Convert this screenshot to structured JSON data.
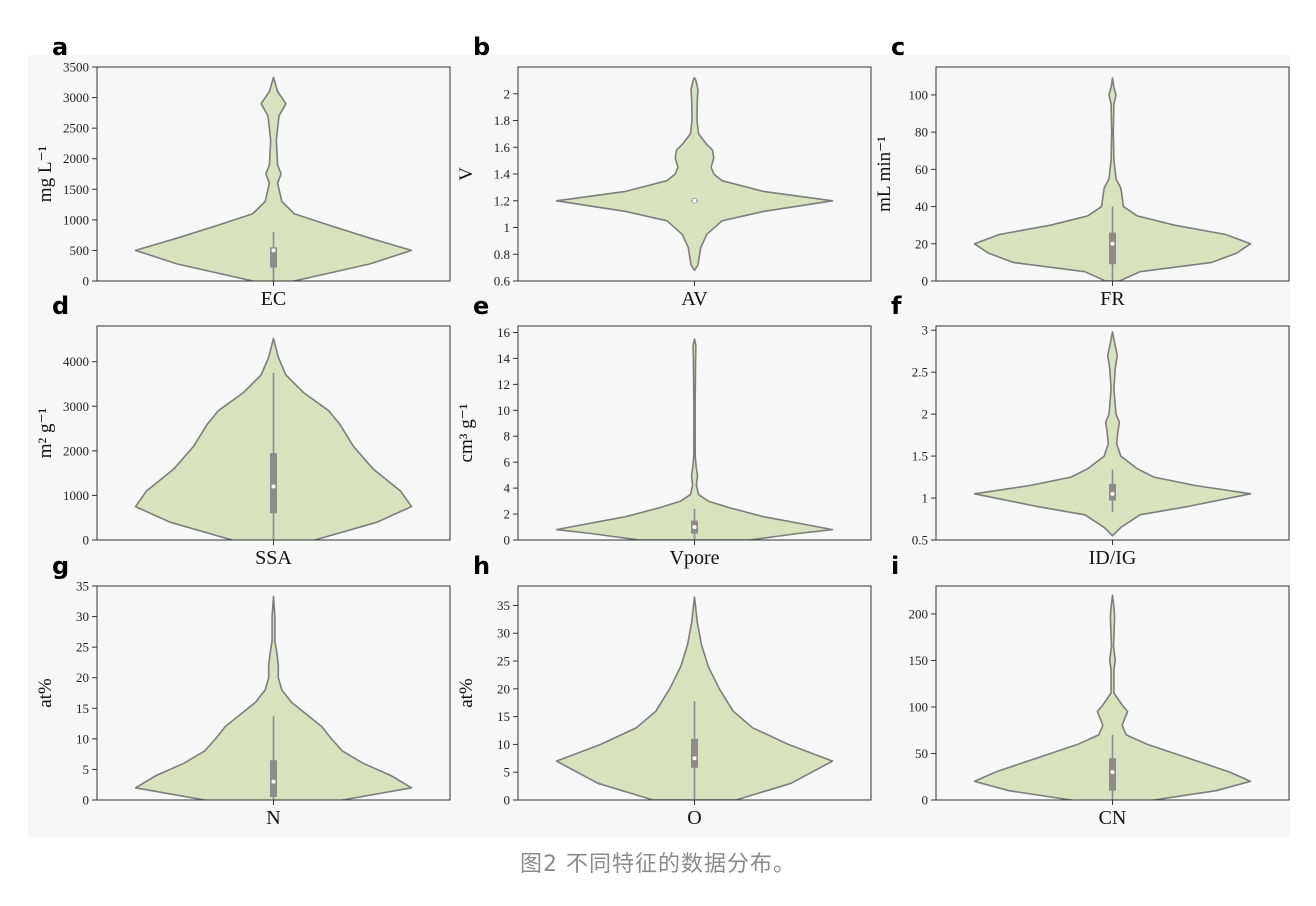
{
  "caption": "图2 不同特征的数据分布。",
  "colors": {
    "figure_background": "#f7f7f7",
    "violin_fill": "#d8e2bd",
    "violin_edge": "#7d7d7d",
    "box": "#8c8c8c",
    "median": "#ffffff"
  },
  "chart_data": [
    {
      "panel": "a",
      "type": "violin",
      "category": "EC",
      "ylabel": "mg L⁻¹",
      "ylim": [
        0,
        3500
      ],
      "yticks": [
        0,
        500,
        1000,
        1500,
        2000,
        2500,
        3000,
        3500
      ],
      "density": [
        [
          -300,
          0
        ],
        [
          0,
          0.15
        ],
        [
          280,
          0.7
        ],
        [
          500,
          1.0
        ],
        [
          700,
          0.7
        ],
        [
          900,
          0.42
        ],
        [
          1100,
          0.15
        ],
        [
          1300,
          0.06
        ],
        [
          1600,
          0.03
        ],
        [
          1750,
          0.055
        ],
        [
          1900,
          0.03
        ],
        [
          2300,
          0.02
        ],
        [
          2700,
          0.04
        ],
        [
          2900,
          0.09
        ],
        [
          3100,
          0.03
        ],
        [
          3330,
          0
        ]
      ],
      "box": {
        "q1": 220,
        "q3": 550,
        "whisker_low": 0,
        "whisker_high": 800,
        "median": 500
      }
    },
    {
      "panel": "b",
      "type": "violin",
      "category": "AV",
      "ylabel": "V",
      "ylim": [
        0.6,
        2.2
      ],
      "yticks": [
        0.6,
        0.8,
        1.0,
        1.2,
        1.4,
        1.6,
        1.8,
        2.0
      ],
      "density": [
        [
          0.68,
          0
        ],
        [
          0.72,
          0.025
        ],
        [
          0.85,
          0.045
        ],
        [
          0.95,
          0.09
        ],
        [
          1.05,
          0.2
        ],
        [
          1.12,
          0.5
        ],
        [
          1.2,
          1.0
        ],
        [
          1.27,
          0.5
        ],
        [
          1.35,
          0.2
        ],
        [
          1.4,
          0.14
        ],
        [
          1.45,
          0.12
        ],
        [
          1.52,
          0.14
        ],
        [
          1.58,
          0.13
        ],
        [
          1.62,
          0.09
        ],
        [
          1.7,
          0.03
        ],
        [
          1.8,
          0.018
        ],
        [
          1.95,
          0.02
        ],
        [
          2.03,
          0.025
        ],
        [
          2.1,
          0.01
        ],
        [
          2.12,
          0
        ]
      ],
      "box": {
        "q1": 1.195,
        "q3": 1.205,
        "whisker_low": 1.195,
        "whisker_high": 1.205,
        "median": 1.2
      }
    },
    {
      "panel": "c",
      "type": "violin",
      "category": "FR",
      "ylabel": "mL min⁻¹",
      "ylim": [
        0,
        115
      ],
      "yticks": [
        0,
        20,
        40,
        60,
        80,
        100
      ],
      "density": [
        [
          0,
          0.05
        ],
        [
          5,
          0.2
        ],
        [
          10,
          0.72
        ],
        [
          15,
          0.9
        ],
        [
          20,
          1.0
        ],
        [
          25,
          0.82
        ],
        [
          30,
          0.45
        ],
        [
          35,
          0.18
        ],
        [
          40,
          0.08
        ],
        [
          45,
          0.07
        ],
        [
          50,
          0.06
        ],
        [
          55,
          0.025
        ],
        [
          65,
          0.01
        ],
        [
          80,
          0.006
        ],
        [
          95,
          0.01
        ],
        [
          100,
          0.025
        ],
        [
          104,
          0.01
        ],
        [
          109,
          0
        ]
      ],
      "box": {
        "q1": 9,
        "q3": 26,
        "whisker_low": 0,
        "whisker_high": 40,
        "median": 20
      }
    },
    {
      "panel": "d",
      "type": "violin",
      "category": "SSA",
      "ylabel": "m² g⁻¹",
      "ylim": [
        0,
        4800
      ],
      "yticks": [
        0,
        1000,
        2000,
        3000,
        4000
      ],
      "density": [
        [
          -700,
          0
        ],
        [
          0,
          0.3
        ],
        [
          400,
          0.75
        ],
        [
          750,
          1.0
        ],
        [
          1100,
          0.92
        ],
        [
          1600,
          0.72
        ],
        [
          2100,
          0.58
        ],
        [
          2600,
          0.48
        ],
        [
          2900,
          0.4
        ],
        [
          3300,
          0.22
        ],
        [
          3700,
          0.09
        ],
        [
          4100,
          0.035
        ],
        [
          4520,
          0
        ]
      ],
      "box": {
        "q1": 600,
        "q3": 1950,
        "whisker_low": 0,
        "whisker_high": 3750,
        "median": 1200
      }
    },
    {
      "panel": "e",
      "type": "violin",
      "category": "Vpore",
      "ylabel": "cm³ g⁻¹",
      "ylim": [
        0,
        16.5
      ],
      "yticks": [
        0,
        2,
        4,
        6,
        8,
        10,
        12,
        14,
        16
      ],
      "density": [
        [
          0,
          0.4
        ],
        [
          0.5,
          0.75
        ],
        [
          0.8,
          1.0
        ],
        [
          1.2,
          0.8
        ],
        [
          1.8,
          0.5
        ],
        [
          2.5,
          0.25
        ],
        [
          3,
          0.1
        ],
        [
          3.5,
          0.03
        ],
        [
          4.2,
          0.014
        ],
        [
          5,
          0.022
        ],
        [
          5.6,
          0.012
        ],
        [
          6.5,
          0.005
        ],
        [
          10,
          0.004
        ],
        [
          14,
          0.008
        ],
        [
          15,
          0.01
        ],
        [
          15.5,
          0
        ]
      ],
      "box": {
        "q1": 0.5,
        "q3": 1.5,
        "whisker_low": 0,
        "whisker_high": 2.4,
        "median": 1.0
      }
    },
    {
      "panel": "f",
      "type": "violin",
      "category": "ID/IG",
      "ylabel": "",
      "ylim": [
        0.5,
        3.05
      ],
      "yticks": [
        0.5,
        1.0,
        1.5,
        2.0,
        2.5,
        3.0
      ],
      "density": [
        [
          0.55,
          0
        ],
        [
          0.65,
          0.06
        ],
        [
          0.8,
          0.2
        ],
        [
          0.9,
          0.55
        ],
        [
          1.05,
          1.0
        ],
        [
          1.15,
          0.6
        ],
        [
          1.25,
          0.3
        ],
        [
          1.35,
          0.18
        ],
        [
          1.5,
          0.06
        ],
        [
          1.65,
          0.03
        ],
        [
          1.8,
          0.04
        ],
        [
          1.9,
          0.05
        ],
        [
          2.0,
          0.025
        ],
        [
          2.3,
          0.01
        ],
        [
          2.55,
          0.02
        ],
        [
          2.7,
          0.035
        ],
        [
          2.85,
          0.015
        ],
        [
          2.98,
          0
        ]
      ],
      "box": {
        "q1": 0.97,
        "q3": 1.17,
        "whisker_low": 0.83,
        "whisker_high": 1.34,
        "median": 1.05
      }
    },
    {
      "panel": "g",
      "type": "violin",
      "category": "N",
      "ylabel": "at%",
      "ylim": [
        0,
        35
      ],
      "yticks": [
        0,
        5,
        10,
        15,
        20,
        25,
        30,
        35
      ],
      "density": [
        [
          -2,
          0
        ],
        [
          0,
          0.5
        ],
        [
          2,
          1.0
        ],
        [
          4,
          0.85
        ],
        [
          6,
          0.65
        ],
        [
          8,
          0.5
        ],
        [
          10,
          0.42
        ],
        [
          12,
          0.35
        ],
        [
          14,
          0.24
        ],
        [
          16,
          0.13
        ],
        [
          18,
          0.06
        ],
        [
          20,
          0.035
        ],
        [
          22,
          0.035
        ],
        [
          24,
          0.025
        ],
        [
          26,
          0.01
        ],
        [
          30,
          0.01
        ],
        [
          33.3,
          0
        ]
      ],
      "box": {
        "q1": 0.5,
        "q3": 6.5,
        "whisker_low": 0,
        "whisker_high": 13.7,
        "median": 3
      }
    },
    {
      "panel": "h",
      "type": "violin",
      "category": "O",
      "ylabel": "at%",
      "ylim": [
        0,
        38.5
      ],
      "yticks": [
        0,
        5,
        10,
        15,
        20,
        25,
        30,
        35
      ],
      "density": [
        [
          0,
          0.3
        ],
        [
          3,
          0.7
        ],
        [
          7,
          1.0
        ],
        [
          10,
          0.68
        ],
        [
          13,
          0.42
        ],
        [
          16,
          0.28
        ],
        [
          20,
          0.18
        ],
        [
          24,
          0.1
        ],
        [
          28,
          0.05
        ],
        [
          32,
          0.02
        ],
        [
          36.5,
          0
        ]
      ],
      "box": {
        "q1": 5.8,
        "q3": 11,
        "whisker_low": 0,
        "whisker_high": 17.8,
        "median": 7.5
      }
    },
    {
      "panel": "i",
      "type": "violin",
      "category": "CN",
      "ylabel": "",
      "ylim": [
        0,
        230
      ],
      "yticks": [
        0,
        50,
        100,
        150,
        200
      ],
      "density": [
        [
          -10,
          0
        ],
        [
          0,
          0.3
        ],
        [
          10,
          0.75
        ],
        [
          20,
          1.0
        ],
        [
          30,
          0.85
        ],
        [
          40,
          0.65
        ],
        [
          50,
          0.45
        ],
        [
          60,
          0.25
        ],
        [
          70,
          0.1
        ],
        [
          80,
          0.07
        ],
        [
          88,
          0.09
        ],
        [
          95,
          0.11
        ],
        [
          102,
          0.07
        ],
        [
          115,
          0.01
        ],
        [
          140,
          0.01
        ],
        [
          150,
          0.02
        ],
        [
          165,
          0.007
        ],
        [
          195,
          0.015
        ],
        [
          205,
          0.012
        ],
        [
          220,
          0
        ]
      ],
      "box": {
        "q1": 10,
        "q3": 45,
        "whisker_low": 0,
        "whisker_high": 70,
        "median": 30
      }
    }
  ]
}
